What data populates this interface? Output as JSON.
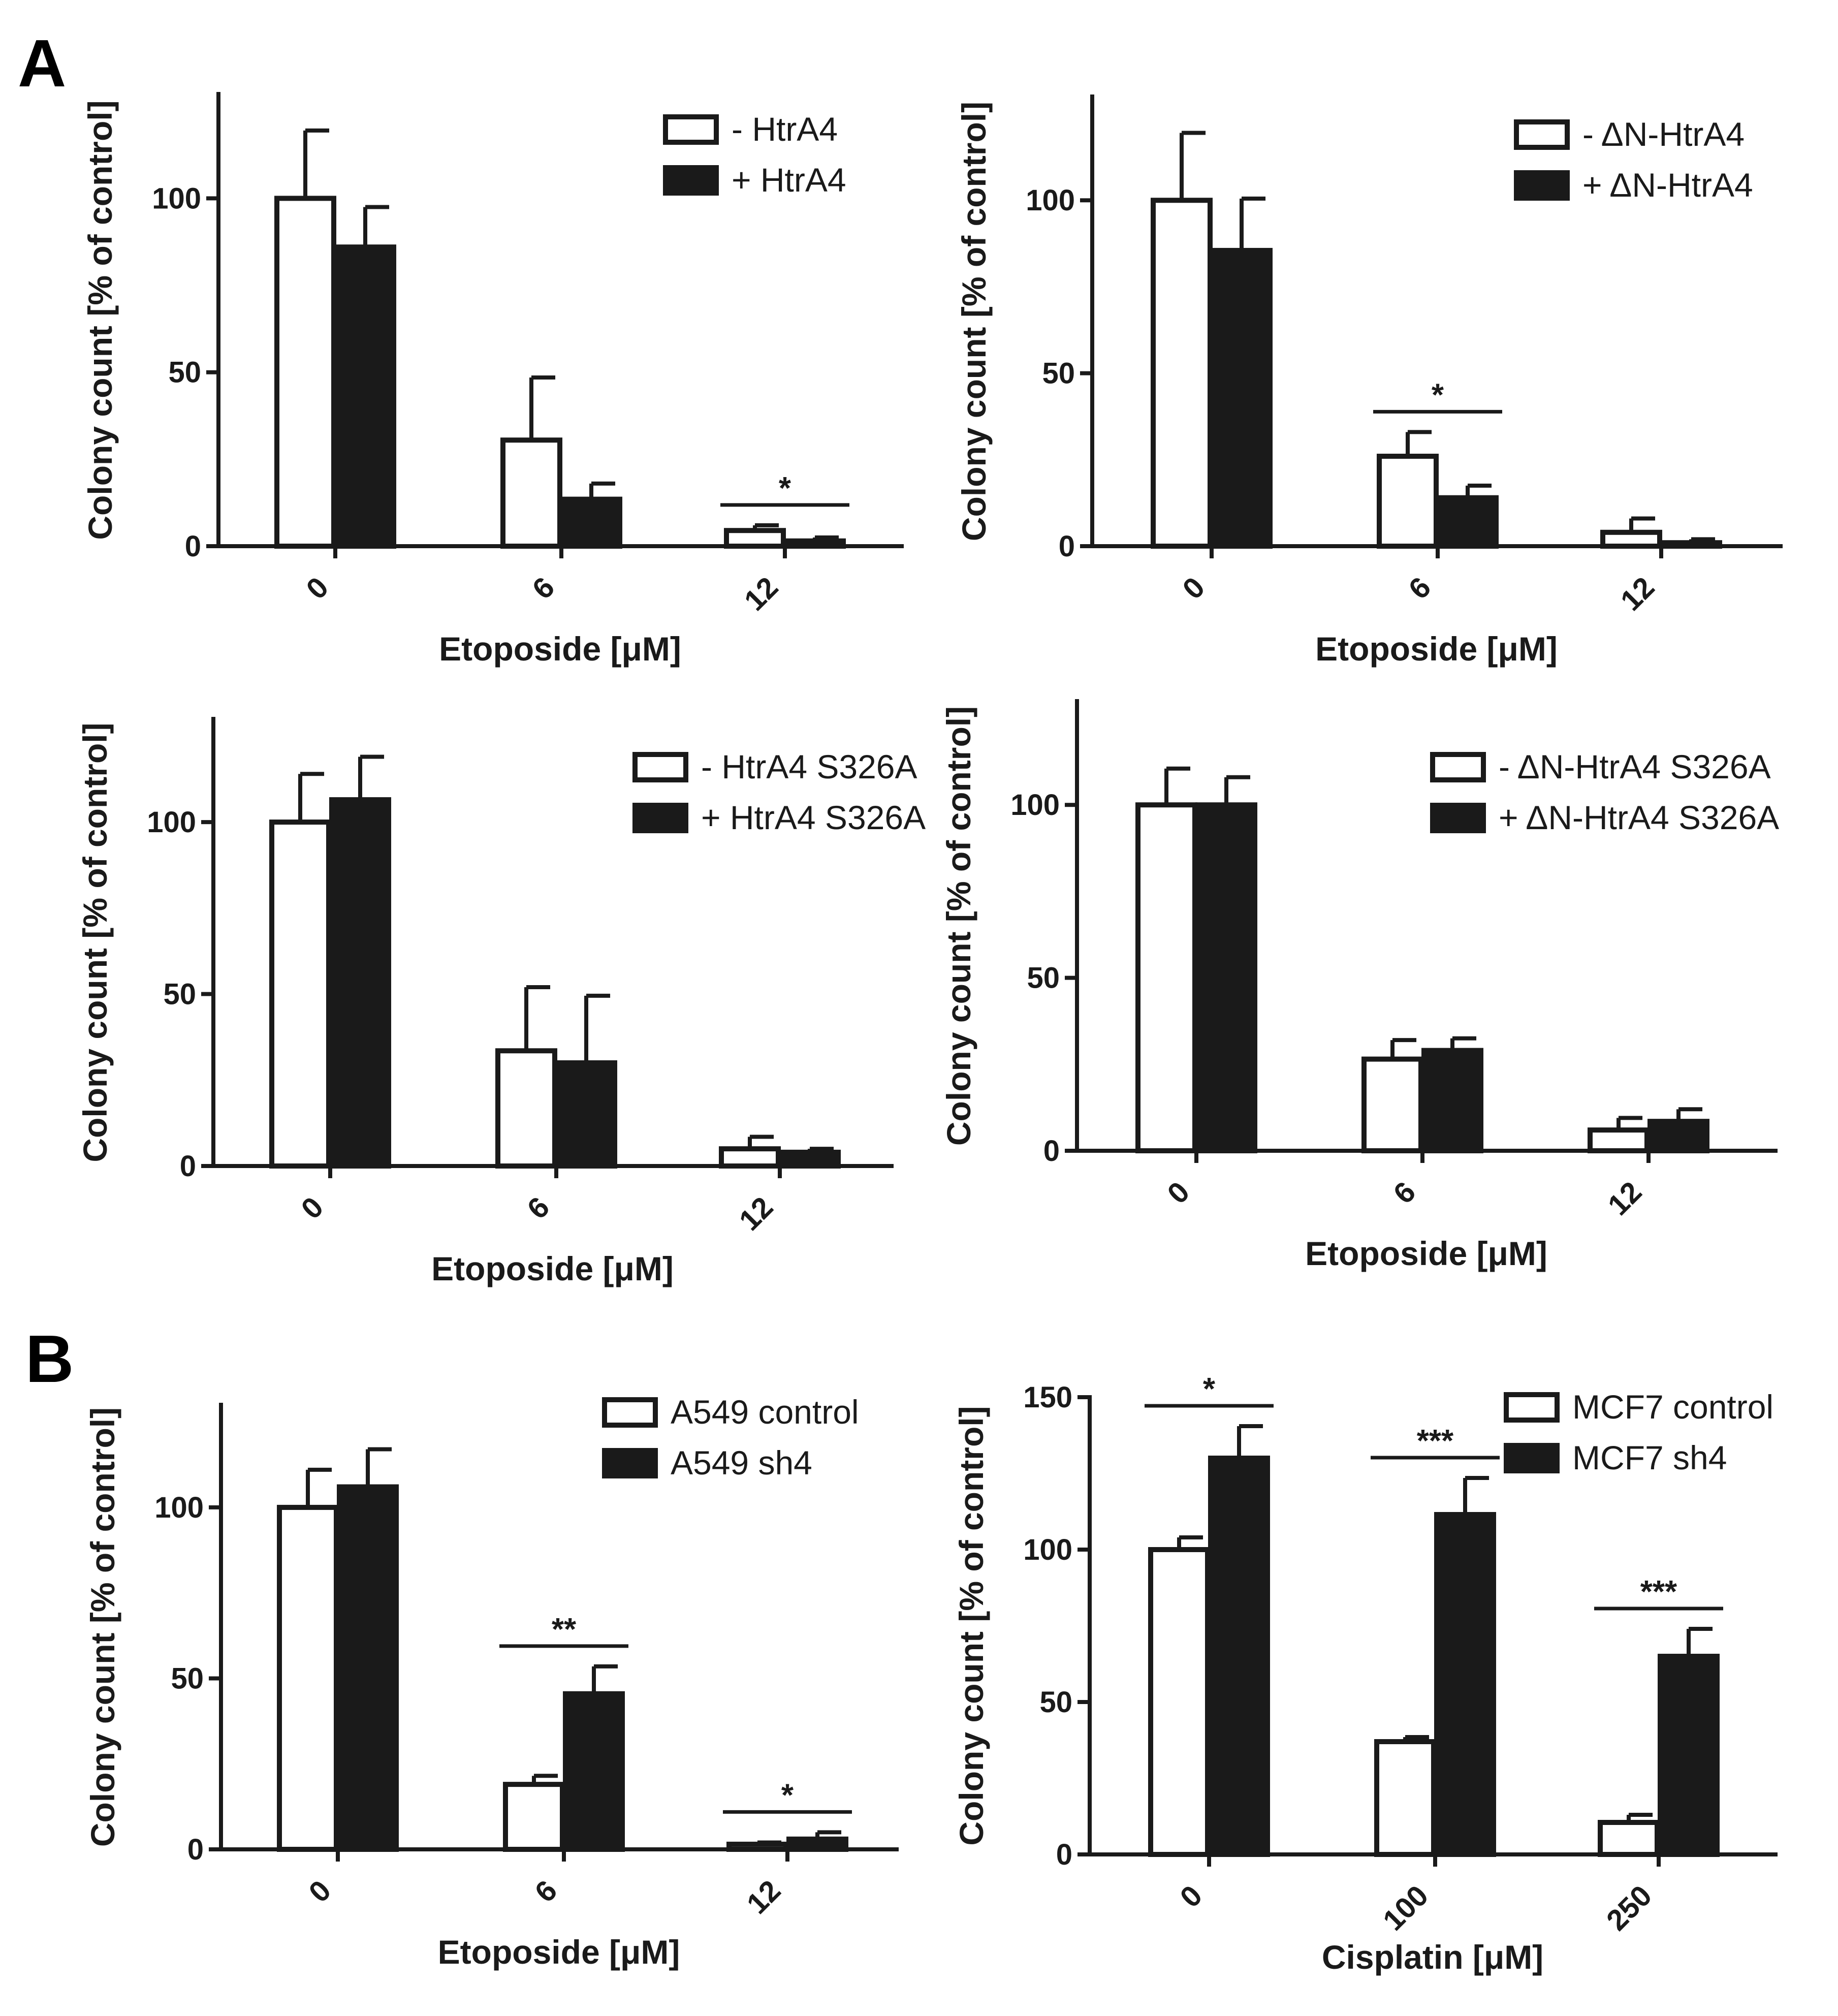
{
  "panel_labels": [
    "A",
    "B"
  ],
  "colors": {
    "open_fill": "#ffffff",
    "solid_fill": "#1a1a1a",
    "ink": "#1a1a1a"
  },
  "chart_data": [
    {
      "id": "a1",
      "type": "bar",
      "categories": [
        "0",
        "6",
        "12"
      ],
      "xlabel": "Etoposide [μM]",
      "ylabel": "Colony count [% of control]",
      "ylim": [
        0,
        130
      ],
      "yticks": [
        0,
        50,
        100
      ],
      "legend_position": "top-right",
      "series": [
        {
          "name": "- HtrA4",
          "style": "open",
          "values": [
            100,
            30.5,
            4.5
          ],
          "errors": [
            19.5,
            18,
            1.5
          ]
        },
        {
          "name": "+ HtrA4",
          "style": "solid",
          "values": [
            86,
            13.5,
            1.5
          ],
          "errors": [
            11.5,
            4.5,
            1
          ]
        }
      ],
      "significance": [
        {
          "category": 2,
          "label": "*"
        }
      ]
    },
    {
      "id": "a2",
      "type": "bar",
      "categories": [
        "0",
        "6",
        "12"
      ],
      "xlabel": "Etoposide [μM]",
      "ylabel": "Colony count [% of control]",
      "ylim": [
        0,
        130
      ],
      "yticks": [
        0,
        50,
        100
      ],
      "legend_position": "top-right",
      "series": [
        {
          "name": "- ΔN-HtrA4",
          "style": "open",
          "values": [
            100,
            26,
            4
          ],
          "errors": [
            19.5,
            7,
            4
          ]
        },
        {
          "name": "+ ΔN-HtrA4",
          "style": "solid",
          "values": [
            85.5,
            14,
            1
          ],
          "errors": [
            15,
            3.5,
            1
          ]
        }
      ],
      "significance": [
        {
          "category": 1,
          "label": "*"
        }
      ]
    },
    {
      "id": "a3",
      "type": "bar",
      "categories": [
        "0",
        "6",
        "12"
      ],
      "xlabel": "Etoposide [μM]",
      "ylabel": "Colony count [% of control]",
      "ylim": [
        0,
        130
      ],
      "yticks": [
        0,
        50,
        100
      ],
      "legend_position": "top-right",
      "series": [
        {
          "name": "- HtrA4 S326A",
          "style": "open",
          "values": [
            100,
            33.5,
            5
          ],
          "errors": [
            14,
            18.5,
            3.5
          ]
        },
        {
          "name": "+ HtrA4 S326A",
          "style": "solid",
          "values": [
            106.5,
            30,
            4
          ],
          "errors": [
            12.5,
            19.5,
            1
          ]
        }
      ],
      "significance": []
    },
    {
      "id": "a4",
      "type": "bar",
      "categories": [
        "0",
        "6",
        "12"
      ],
      "xlabel": "Etoposide [μM]",
      "ylabel": "Colony count [% of control]",
      "ylim": [
        0,
        130
      ],
      "yticks": [
        0,
        50,
        100
      ],
      "legend_position": "top-right",
      "series": [
        {
          "name": "- ΔN-HtrA4 S326A",
          "style": "open",
          "values": [
            100,
            26.5,
            6
          ],
          "errors": [
            10.5,
            5.5,
            3.5
          ]
        },
        {
          "name": "+ ΔN-HtrA4 S326A",
          "style": "solid",
          "values": [
            100,
            29,
            8.5
          ],
          "errors": [
            8,
            3.5,
            3.5
          ]
        }
      ],
      "significance": []
    },
    {
      "id": "b1",
      "type": "bar",
      "categories": [
        "0",
        "6",
        "12"
      ],
      "xlabel": "Etoposide [μM]",
      "ylabel": "Colony count [% of control]",
      "ylim": [
        0,
        130
      ],
      "yticks": [
        0,
        50,
        100
      ],
      "legend_position": "top-right",
      "series": [
        {
          "name": "A549 control",
          "style": "open",
          "values": [
            100,
            19,
            1.5
          ],
          "errors": [
            11,
            2.5,
            0.5
          ]
        },
        {
          "name": "A549 sh4",
          "style": "solid",
          "values": [
            106,
            45.5,
            3
          ],
          "errors": [
            11,
            8,
            2
          ]
        }
      ],
      "significance": [
        {
          "category": 1,
          "label": "**"
        },
        {
          "category": 2,
          "label": "*"
        }
      ]
    },
    {
      "id": "b2",
      "type": "bar",
      "categories": [
        "0",
        "100",
        "250"
      ],
      "xlabel": "Cisplatin [μM]",
      "ylabel": "Colony count [% of control]",
      "ylim": [
        0,
        150
      ],
      "yticks": [
        0,
        50,
        100,
        150
      ],
      "legend_position": "top-right",
      "series": [
        {
          "name": "MCF7 control",
          "style": "open",
          "values": [
            100,
            37,
            10.5
          ],
          "errors": [
            4,
            1.5,
            2.5
          ]
        },
        {
          "name": "MCF7 sh4",
          "style": "solid",
          "values": [
            130,
            111.5,
            65
          ],
          "errors": [
            10.5,
            12,
            9
          ]
        }
      ],
      "significance": [
        {
          "category": 0,
          "label": "*"
        },
        {
          "category": 1,
          "label": "***"
        },
        {
          "category": 2,
          "label": "***"
        }
      ]
    }
  ]
}
